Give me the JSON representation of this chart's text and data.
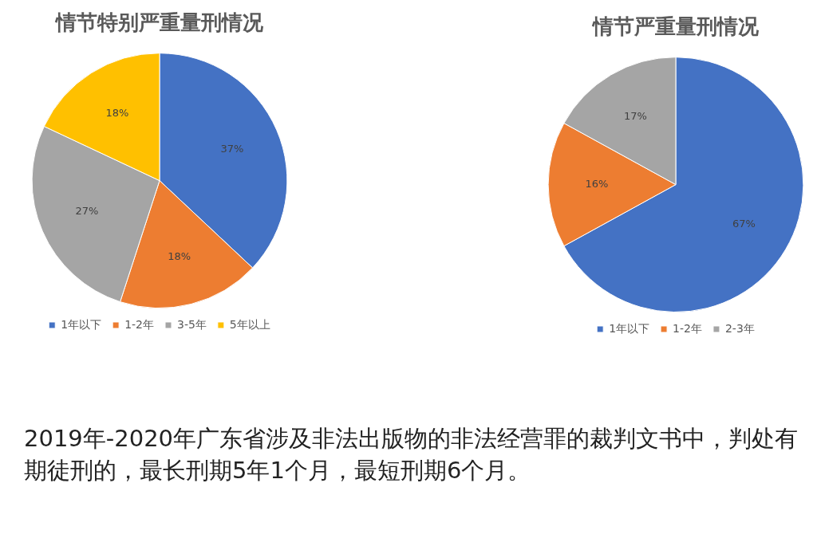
{
  "chart_data": [
    {
      "type": "pie",
      "title": "情节特别严重量刑情况",
      "categories": [
        "1年以下",
        "1-2年",
        "3-5年",
        "5年以上"
      ],
      "values": [
        37,
        18,
        27,
        18
      ],
      "colors": [
        "#4472c4",
        "#ed7d31",
        "#a5a5a5",
        "#ffc000"
      ],
      "value_labels": [
        "37%",
        "18%",
        "27%",
        "18%"
      ],
      "legend": "bottom"
    },
    {
      "type": "pie",
      "title": "情节严重量刑情况",
      "categories": [
        "1年以下",
        "1-2年",
        "2-3年"
      ],
      "values": [
        67,
        16,
        17
      ],
      "colors": [
        "#4472c4",
        "#ed7d31",
        "#a5a5a5"
      ],
      "value_labels": [
        "67%",
        "16%",
        "17%"
      ],
      "legend": "bottom"
    },
    {
      "type": "other",
      "annotations": [
        "2019年-2020年广东省涉及非法出版物的非法经营罪的裁判文书中，判处有期徒刑的，最长刑期5年1个月，最短刑期6个月。"
      ]
    }
  ]
}
